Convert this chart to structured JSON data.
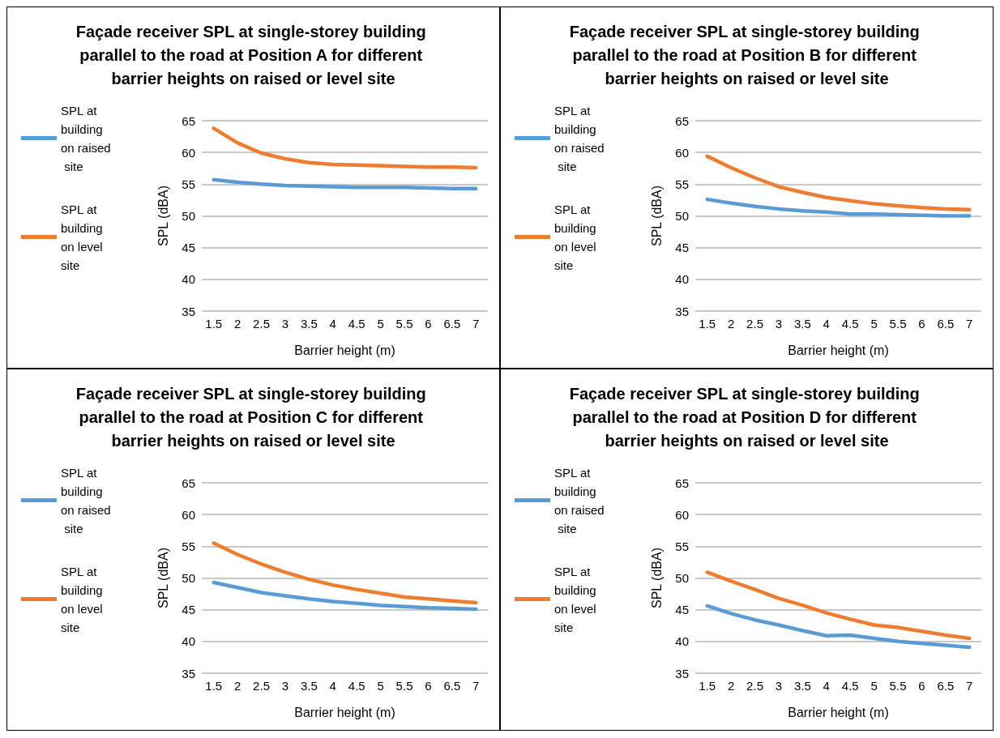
{
  "chart_data": [
    {
      "type": "line",
      "title": "Façade receiver SPL at single-storey building parallel to the road at Position A for different barrier heights on raised or level site",
      "xlabel": "Barrier height (m)",
      "ylabel": "SPL (dBA)",
      "categories": [
        "1.5",
        "2",
        "2.5",
        "3",
        "3.5",
        "4",
        "4.5",
        "5",
        "5.5",
        "6",
        "6.5",
        "7"
      ],
      "ylim": [
        35,
        65
      ],
      "yticks": [
        35,
        40,
        45,
        50,
        55,
        60,
        65
      ],
      "grid": "y",
      "legend": "left",
      "marker": "none",
      "line_style": "solid",
      "series": [
        {
          "name": "SPL at building on raised site",
          "color": "#5b9bd5",
          "values": [
            55.7,
            55.3,
            55.0,
            54.8,
            54.7,
            54.6,
            54.5,
            54.5,
            54.5,
            54.4,
            54.3,
            54.3
          ]
        },
        {
          "name": "SPL at building on level site",
          "color": "#ed7d31",
          "values": [
            63.8,
            61.5,
            59.9,
            59.0,
            58.4,
            58.1,
            58.0,
            57.9,
            57.8,
            57.7,
            57.7,
            57.6
          ]
        }
      ]
    },
    {
      "type": "line",
      "title": "Façade receiver SPL at single-storey building parallel to the road at Position B for different barrier heights on raised or level site",
      "xlabel": "Barrier height (m)",
      "ylabel": "SPL (dBA)",
      "categories": [
        "1.5",
        "2",
        "2.5",
        "3",
        "3.5",
        "4",
        "4.5",
        "5",
        "5.5",
        "6",
        "6.5",
        "7"
      ],
      "ylim": [
        35,
        65
      ],
      "yticks": [
        35,
        40,
        45,
        50,
        55,
        60,
        65
      ],
      "grid": "y",
      "legend": "left",
      "marker": "none",
      "line_style": "solid",
      "series": [
        {
          "name": "SPL at building on raised site",
          "color": "#5b9bd5",
          "values": [
            52.6,
            52.0,
            51.5,
            51.1,
            50.8,
            50.6,
            50.3,
            50.3,
            50.2,
            50.1,
            50.0,
            50.0
          ]
        },
        {
          "name": "SPL at building on level site",
          "color": "#ed7d31",
          "values": [
            59.4,
            57.6,
            56.0,
            54.6,
            53.7,
            52.9,
            52.4,
            51.9,
            51.6,
            51.3,
            51.1,
            51.0
          ]
        }
      ]
    },
    {
      "type": "line",
      "title": "Façade receiver SPL at single-storey building parallel to the road at Position C for different barrier heights on raised or level site",
      "xlabel": "Barrier height (m)",
      "ylabel": "SPL (dBA)",
      "categories": [
        "1.5",
        "2",
        "2.5",
        "3",
        "3.5",
        "4",
        "4.5",
        "5",
        "5.5",
        "6",
        "6.5",
        "7"
      ],
      "ylim": [
        35,
        65
      ],
      "yticks": [
        35,
        40,
        45,
        50,
        55,
        60,
        65
      ],
      "grid": "y",
      "legend": "left",
      "marker": "none",
      "line_style": "solid",
      "series": [
        {
          "name": "SPL at building on raised site",
          "color": "#5b9bd5",
          "values": [
            49.3,
            48.5,
            47.7,
            47.2,
            46.7,
            46.3,
            46.0,
            45.7,
            45.5,
            45.3,
            45.2,
            45.1
          ]
        },
        {
          "name": "SPL at building on level site",
          "color": "#ed7d31",
          "values": [
            55.5,
            53.7,
            52.2,
            50.9,
            49.8,
            48.9,
            48.2,
            47.6,
            47.0,
            46.7,
            46.4,
            46.1
          ]
        }
      ]
    },
    {
      "type": "line",
      "title": "Façade receiver SPL at single-storey building parallel to the road at Position D for different barrier heights on raised or level site",
      "xlabel": "Barrier height (m)",
      "ylabel": "SPL (dBA)",
      "categories": [
        "1.5",
        "2",
        "2.5",
        "3",
        "3.5",
        "4",
        "4.5",
        "5",
        "5.5",
        "6",
        "6.5",
        "7"
      ],
      "ylim": [
        35,
        65
      ],
      "yticks": [
        35,
        40,
        45,
        50,
        55,
        60,
        65
      ],
      "grid": "y",
      "legend": "left",
      "marker": "none",
      "line_style": "solid",
      "series": [
        {
          "name": "SPL at building on raised site",
          "color": "#5b9bd5",
          "values": [
            45.6,
            44.4,
            43.4,
            42.6,
            41.7,
            40.9,
            41.0,
            40.5,
            40.0,
            39.7,
            39.4,
            39.1
          ]
        },
        {
          "name": "SPL at building on level site",
          "color": "#ed7d31",
          "values": [
            50.9,
            49.5,
            48.2,
            46.8,
            45.7,
            44.5,
            43.5,
            42.6,
            42.2,
            41.6,
            41.0,
            40.5
          ]
        }
      ]
    }
  ]
}
